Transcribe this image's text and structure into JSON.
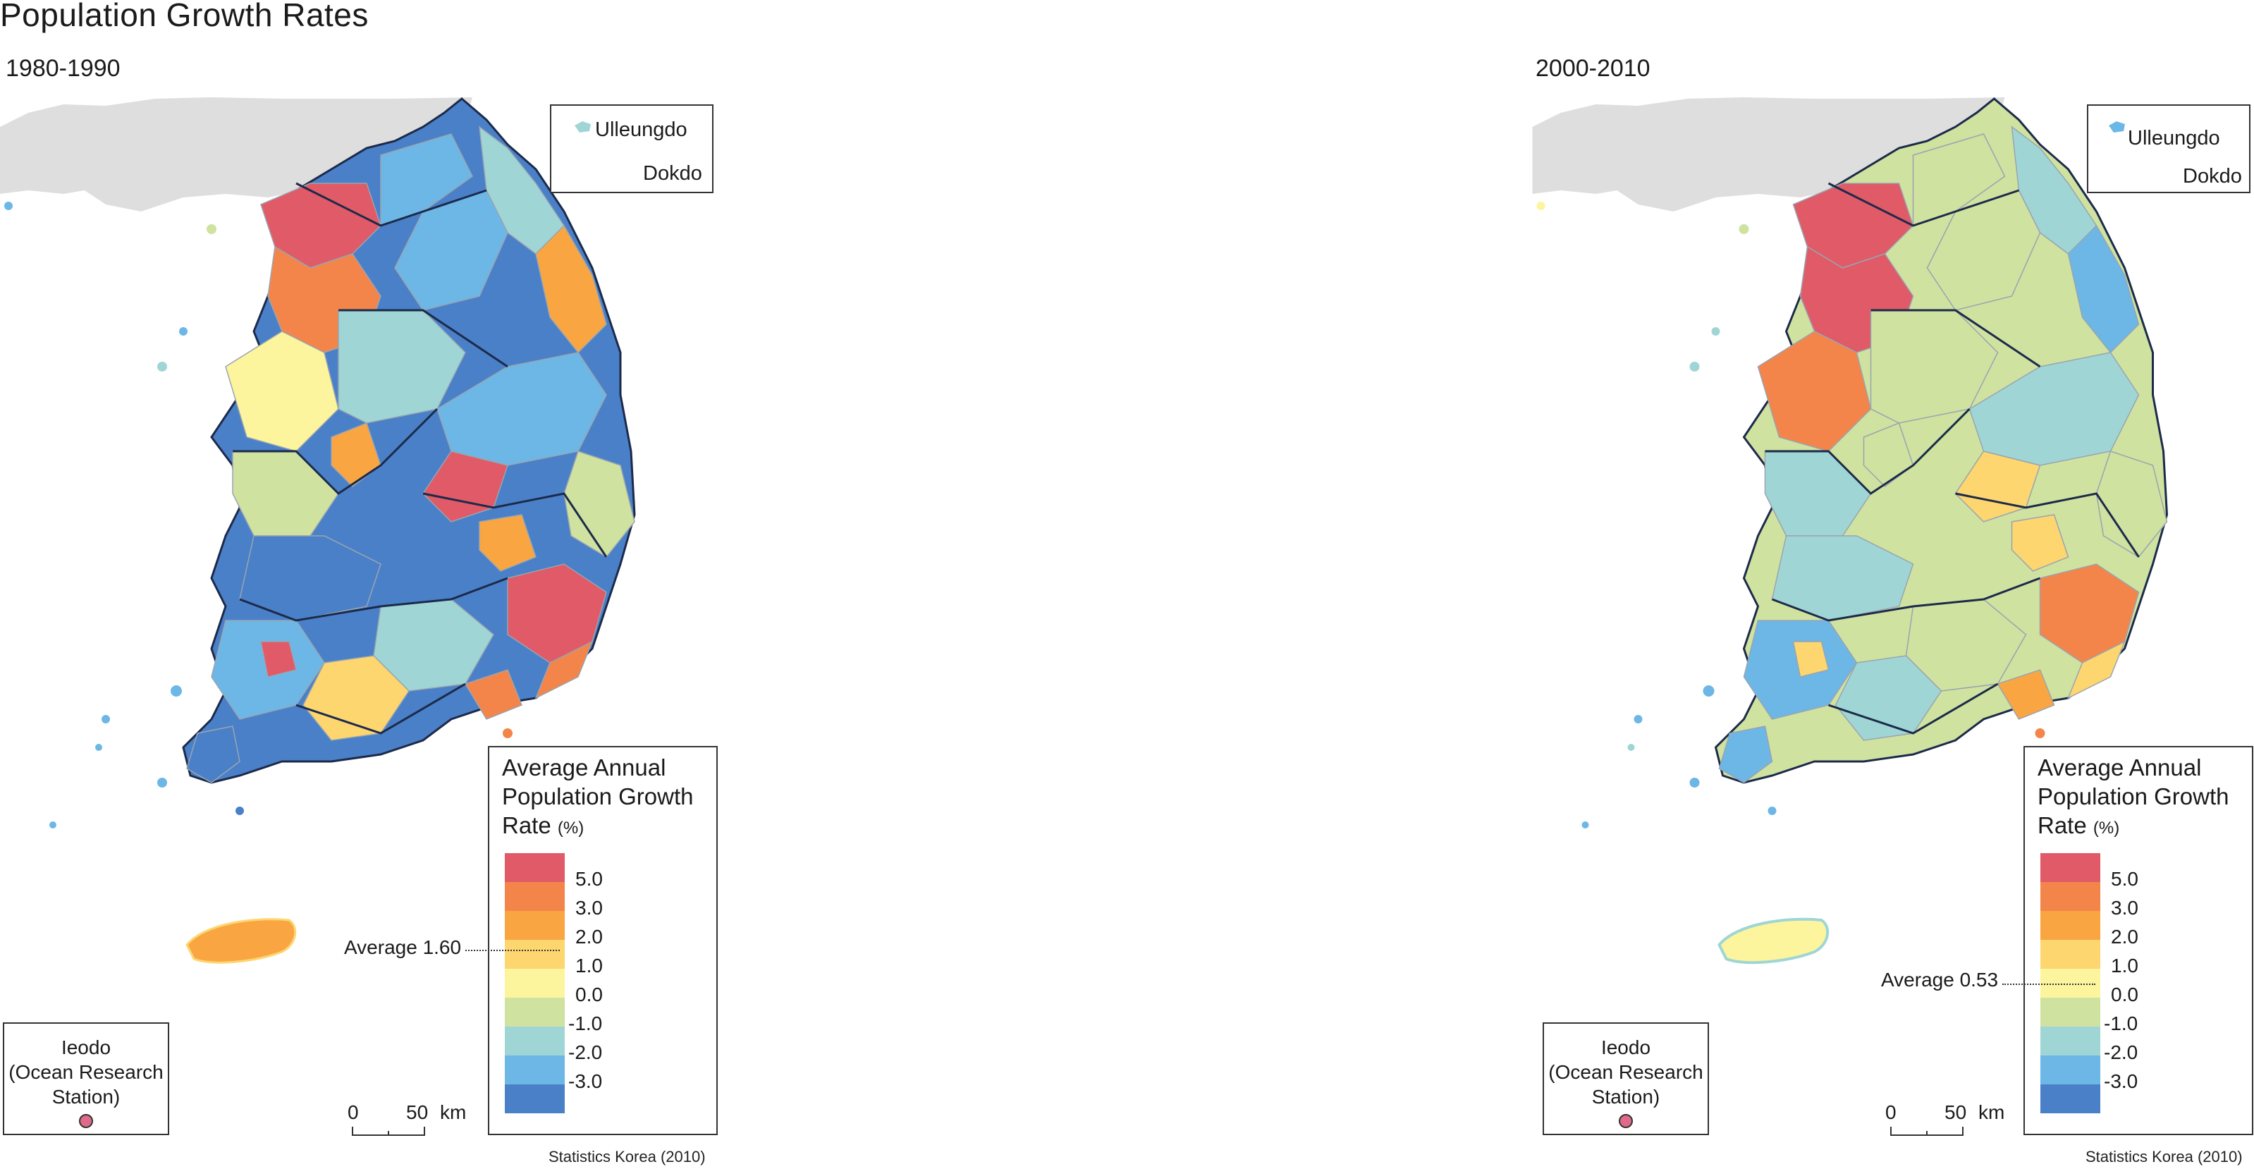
{
  "title": "Population Growth Rates",
  "maps": [
    {
      "period": "1980-1990",
      "average_label": "Average 1.60",
      "average_value": 1.6,
      "region_fill_sequence": [
        "blue",
        "blue",
        "lightblue",
        "red",
        "orange",
        "lightblue",
        "blue",
        "blue",
        "orange",
        "green",
        "lightblue",
        "blue",
        "blue",
        "red",
        "blue",
        "yellow",
        "blue",
        "blue",
        "orange",
        "red",
        "lightblue",
        "blue",
        "green",
        "blue",
        "blue",
        "orange",
        "blue",
        "yellow",
        "lightblue",
        "blue"
      ],
      "jeju_fill": "gold"
    },
    {
      "period": "2000-2010",
      "average_label": "Average 0.53",
      "average_value": 0.53,
      "region_fill_sequence": [
        "green",
        "green",
        "lightblue",
        "red",
        "red",
        "green",
        "lightblue",
        "green",
        "orange",
        "green",
        "lightblue",
        "green",
        "lightblue",
        "red",
        "lightblue",
        "green",
        "green",
        "lightblue",
        "gold",
        "orange",
        "lightblue",
        "green",
        "green",
        "lightblue",
        "blue",
        "orange",
        "lightblue",
        "yellow",
        "green",
        "lightblue"
      ],
      "jeju_fill": "yellow"
    }
  ],
  "inset": {
    "island1": "Ulleungdo",
    "island2": "Dokdo"
  },
  "ieodo": {
    "line1": "Ieodo",
    "line2": "(Ocean Research",
    "line3": "Station)"
  },
  "legend": {
    "title_line1": "Average Annual",
    "title_line2": "Population Growth",
    "title_line3": "Rate",
    "unit": "(%)",
    "classes": [
      {
        "color": "#e05a67",
        "label": "5.0"
      },
      {
        "color": "#f4854a",
        "label": "3.0"
      },
      {
        "color": "#f9a642",
        "label": "2.0"
      },
      {
        "color": "#fdd670",
        "label": "1.0"
      },
      {
        "color": "#fdf49e",
        "label": "0.0"
      },
      {
        "color": "#cfe2a0",
        "label": "-1.0"
      },
      {
        "color": "#9fd6d5",
        "label": "-2.0"
      },
      {
        "color": "#6cb7e6",
        "label": "-3.0"
      },
      {
        "color": "#4a80c8",
        "label": ""
      }
    ]
  },
  "scale_bar": {
    "zero": "0",
    "fifty": "50",
    "unit": "km"
  },
  "source": "Statistics Korea (2010)",
  "colors": {
    "red": "#e05a67",
    "orange": "#f4854a",
    "gold": "#f9a642",
    "yellowgold": "#fdd670",
    "yellow": "#fdf49e",
    "green": "#cfe2a0",
    "lightblue": "#9fd6d5",
    "blue": "#6cb7e6",
    "darkblue": "#4a80c8",
    "china": "#dedede",
    "border": "#1c2a4a"
  }
}
